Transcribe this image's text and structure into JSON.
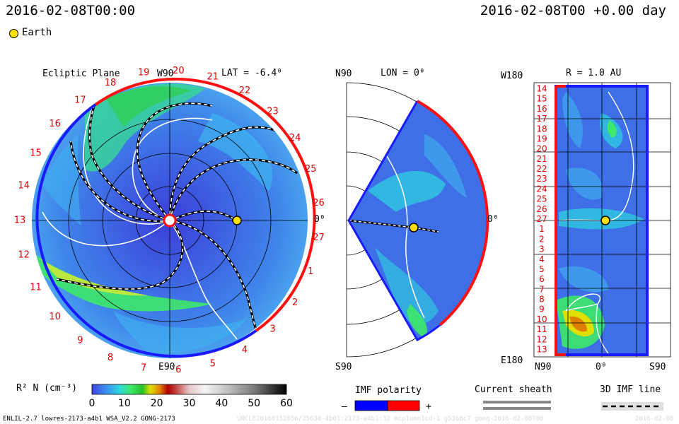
{
  "header": {
    "datetime_left": "2016-02-08T00:00",
    "datetime_right": "2016-02-08T00 +0.00 day"
  },
  "legend_top": {
    "earth_label": "Earth",
    "earth_color": "#ffe000"
  },
  "panels": {
    "ecliptic": {
      "title": "Ecliptic Plane",
      "top_marker": "W90",
      "lat_label": "LAT = -6.4⁰",
      "right_marker": "0⁰",
      "bottom_marker": "E90",
      "rotation_labels": [
        "19",
        "20",
        "21",
        "22",
        "23",
        "24",
        "25",
        "26",
        "27",
        "1",
        "2",
        "3",
        "4",
        "5",
        "6",
        "7",
        "8",
        "9",
        "10",
        "11",
        "12",
        "13",
        "14",
        "15",
        "16",
        "17",
        "18"
      ]
    },
    "meridional": {
      "top_marker": "N90",
      "lon_label": "LON = 0⁰",
      "right_marker": "0⁰",
      "bottom_marker": "S90"
    },
    "radial": {
      "top_left_marker": "W180",
      "r_label": "R = 1.0 AU",
      "bottom_left_marker": "E180",
      "bottom_axis": {
        "left": "N90",
        "center": "0⁰",
        "right": "S90"
      },
      "rotation_labels": [
        "14",
        "15",
        "16",
        "17",
        "18",
        "19",
        "20",
        "21",
        "22",
        "23",
        "24",
        "25",
        "26",
        "27",
        "1",
        "2",
        "3",
        "4",
        "5",
        "6",
        "7",
        "8",
        "9",
        "10",
        "11",
        "12",
        "13"
      ]
    }
  },
  "colorbar": {
    "label": "R² N (cm⁻³)",
    "ticks": [
      "0",
      "10",
      "20",
      "30",
      "40",
      "50",
      "60"
    ],
    "stops": [
      "#4040e0",
      "#3a8cf0",
      "#2dd6e0",
      "#3ee86a",
      "#26c026",
      "#e0e000",
      "#e08000",
      "#b00000",
      "#c04040",
      "#d0a0a0",
      "#f0f0f0",
      "#c0c0c0",
      "#808080",
      "#202020",
      "#000000"
    ]
  },
  "imf_legend": {
    "title": "IMF polarity",
    "minus": "–",
    "plus": "+",
    "negative_color": "#0000ff",
    "positive_color": "#ff0000"
  },
  "sheath_legend": {
    "title": "Current sheath"
  },
  "imf3d_legend": {
    "title": "3D IMF line"
  },
  "footer": {
    "model_info": "ENLIL-2.7 lowres-2173-a4b1 WSA_V2.2 GONG-2173",
    "run_id": "UNCLE20160152656/25630-4b01:2173-a4b1:32 mcp1umn1cd-1 g53b8c7 gong-2016-02-08T00",
    "run_date": "2016-02-08"
  }
}
